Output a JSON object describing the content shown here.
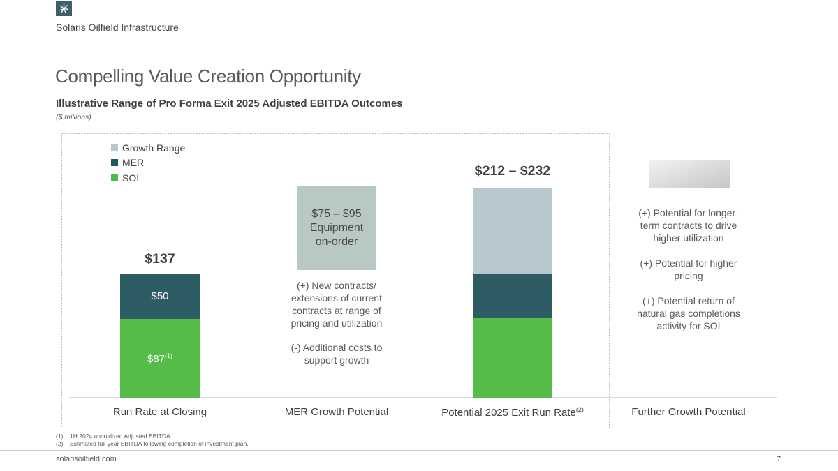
{
  "brand": {
    "company": "Solaris Oilfield Infrastructure"
  },
  "slide": {
    "title": "Compelling Value Creation Opportunity",
    "subtitle": "Illustrative Range of Pro Forma Exit 2025 Adjusted EBITDA Outcomes",
    "units": "($ millions)"
  },
  "colors": {
    "soi_green": "#55bd47",
    "mer_teal": "#2d5c64",
    "growth_gray": "#b7c9ce",
    "legend_mer": "#1f5663",
    "legend_soi": "#4cba43",
    "equipment_box": "#b8c8c5"
  },
  "legend": [
    {
      "label": "Growth Range",
      "color": "#b7c9ce"
    },
    {
      "label": "MER",
      "color": "#1f5663"
    },
    {
      "label": "SOI",
      "color": "#4cba43"
    }
  ],
  "chart_data": {
    "type": "bar",
    "stacked": true,
    "title": "Illustrative Range of Pro Forma Exit 2025 Adjusted EBITDA Outcomes",
    "ylabel": "($ millions)",
    "categories": [
      "Run Rate at Closing",
      "MER Growth Potential",
      "Potential 2025 Exit Run Rate",
      "Further Growth Potential"
    ],
    "series": [
      {
        "name": "SOI",
        "values": [
          87,
          null,
          87,
          null
        ]
      },
      {
        "name": "MER",
        "values": [
          50,
          null,
          50,
          null
        ]
      },
      {
        "name": "Growth Range",
        "values": [
          null,
          null,
          [
            75,
            95
          ],
          null
        ]
      }
    ],
    "totals": [
      "$137",
      null,
      "$212 – $232",
      null
    ],
    "annotations": [
      "",
      "$75 – $95 Equipment on-order",
      "",
      ""
    ]
  },
  "columns": {
    "run_rate": {
      "total_label": "$137",
      "mer_label": "$50",
      "soi_label": "$87",
      "soi_sup": "(1)",
      "category": "Run Rate at Closing"
    },
    "mer_growth": {
      "box_lines": [
        "$75 – $95",
        "Equipment",
        "on-order"
      ],
      "note1": [
        "(+) New contracts/",
        "extensions of current",
        "contracts at range of",
        "pricing and utilization"
      ],
      "note2": [
        "(-) Additional costs to",
        "support growth"
      ],
      "category": "MER Growth Potential"
    },
    "exit_run_rate": {
      "range_label": "$212 – $232",
      "category": "Potential 2025 Exit Run Rate",
      "category_sup": "(2)"
    },
    "further_growth": {
      "note1": [
        "(+) Potential for longer-",
        "term contracts to drive",
        "higher utilization"
      ],
      "note2": [
        "(+) Potential for higher",
        "pricing"
      ],
      "note3": [
        "(+) Potential return of",
        "natural gas completions",
        "activity for SOI"
      ],
      "category": "Further Growth Potential"
    }
  },
  "footnotes": [
    {
      "num": "(1)",
      "text": "1H 2024 annualized Adjusted EBITDA."
    },
    {
      "num": "(2)",
      "text": "Estimated full-year EBITDA following completion of investment plan."
    }
  ],
  "footer": {
    "website": "solarisoilfield.com",
    "page": "7"
  }
}
